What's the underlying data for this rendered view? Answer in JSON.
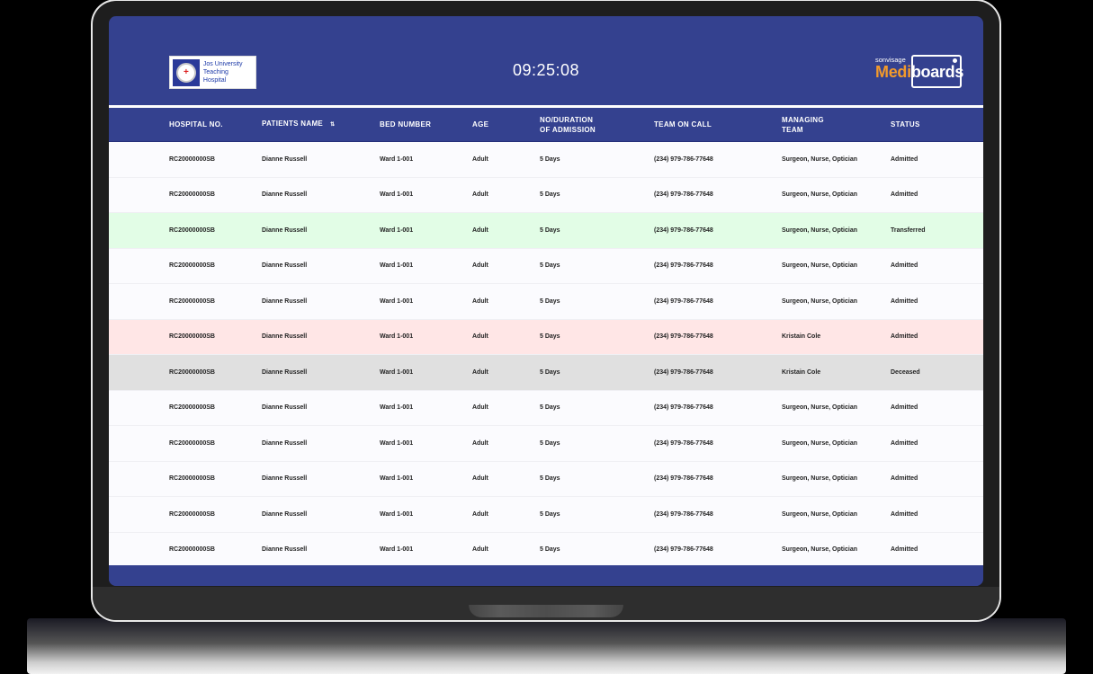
{
  "header": {
    "hospital_logo_line1": "Jos University",
    "hospital_logo_line2": "Teaching Hospital",
    "clock": "09:25:08",
    "brand_small": "sonvisage",
    "brand_medi": "Medi",
    "brand_boards": "boards"
  },
  "colors": {
    "primary": "#34418f",
    "accent": "#f39a2b",
    "row_transferred": "#e2fde6",
    "row_alert": "#ffe6e6",
    "row_deceased": "#e0e0e0"
  },
  "table": {
    "columns": [
      "HOSPITAL NO.",
      "PATIENTS NAME",
      "BED NUMBER",
      "AGE",
      "NO/DURATION",
      "OF ADMISSION",
      "TEAM ON CALL",
      "MANAGING",
      "TEAM",
      "STATUS"
    ],
    "sort_icon": "sort-icon",
    "rows": [
      {
        "hospital_no": "RC20000000SB",
        "name": "Dianne Russell",
        "bed": "Ward 1-001",
        "age": "Adult",
        "duration": "5 Days",
        "team_on_call": "(234) 979-786-77648",
        "managing_team": "Surgeon, Nurse, Optician",
        "status": "Admitted",
        "tone": "normal"
      },
      {
        "hospital_no": "RC20000000SB",
        "name": "Dianne Russell",
        "bed": "Ward 1-001",
        "age": "Adult",
        "duration": "5 Days",
        "team_on_call": "(234) 979-786-77648",
        "managing_team": "Surgeon, Nurse, Optician",
        "status": "Admitted",
        "tone": "normal"
      },
      {
        "hospital_no": "RC20000000SB",
        "name": "Dianne Russell",
        "bed": "Ward 1-001",
        "age": "Adult",
        "duration": "5 Days",
        "team_on_call": "(234) 979-786-77648",
        "managing_team": "Surgeon, Nurse, Optician",
        "status": "Transferred",
        "tone": "green"
      },
      {
        "hospital_no": "RC20000000SB",
        "name": "Dianne Russell",
        "bed": "Ward 1-001",
        "age": "Adult",
        "duration": "5 Days",
        "team_on_call": "(234) 979-786-77648",
        "managing_team": "Surgeon, Nurse, Optician",
        "status": "Admitted",
        "tone": "normal"
      },
      {
        "hospital_no": "RC20000000SB",
        "name": "Dianne Russell",
        "bed": "Ward 1-001",
        "age": "Adult",
        "duration": "5 Days",
        "team_on_call": "(234) 979-786-77648",
        "managing_team": "Surgeon, Nurse, Optician",
        "status": "Admitted",
        "tone": "normal"
      },
      {
        "hospital_no": "RC20000000SB",
        "name": "Dianne Russell",
        "bed": "Ward 1-001",
        "age": "Adult",
        "duration": "5 Days",
        "team_on_call": "(234) 979-786-77648",
        "managing_team": "Kristain Cole",
        "status": "Admitted",
        "tone": "red"
      },
      {
        "hospital_no": "RC20000000SB",
        "name": "Dianne Russell",
        "bed": "Ward 1-001",
        "age": "Adult",
        "duration": "5 Days",
        "team_on_call": "(234) 979-786-77648",
        "managing_team": "Kristain Cole",
        "status": "Deceased",
        "tone": "grey"
      },
      {
        "hospital_no": "RC20000000SB",
        "name": "Dianne Russell",
        "bed": "Ward 1-001",
        "age": "Adult",
        "duration": "5 Days",
        "team_on_call": "(234) 979-786-77648",
        "managing_team": "Surgeon, Nurse, Optician",
        "status": "Admitted",
        "tone": "normal"
      },
      {
        "hospital_no": "RC20000000SB",
        "name": "Dianne Russell",
        "bed": "Ward 1-001",
        "age": "Adult",
        "duration": "5 Days",
        "team_on_call": "(234) 979-786-77648",
        "managing_team": "Surgeon, Nurse, Optician",
        "status": "Admitted",
        "tone": "normal"
      },
      {
        "hospital_no": "RC20000000SB",
        "name": "Dianne Russell",
        "bed": "Ward 1-001",
        "age": "Adult",
        "duration": "5 Days",
        "team_on_call": "(234) 979-786-77648",
        "managing_team": "Surgeon, Nurse, Optician",
        "status": "Admitted",
        "tone": "normal"
      },
      {
        "hospital_no": "RC20000000SB",
        "name": "Dianne Russell",
        "bed": "Ward 1-001",
        "age": "Adult",
        "duration": "5 Days",
        "team_on_call": "(234) 979-786-77648",
        "managing_team": "Surgeon, Nurse, Optician",
        "status": "Admitted",
        "tone": "normal"
      },
      {
        "hospital_no": "RC20000000SB",
        "name": "Dianne Russell",
        "bed": "Ward 1-001",
        "age": "Adult",
        "duration": "5 Days",
        "team_on_call": "(234) 979-786-77648",
        "managing_team": "Surgeon, Nurse, Optician",
        "status": "Admitted",
        "tone": "normal"
      }
    ]
  }
}
